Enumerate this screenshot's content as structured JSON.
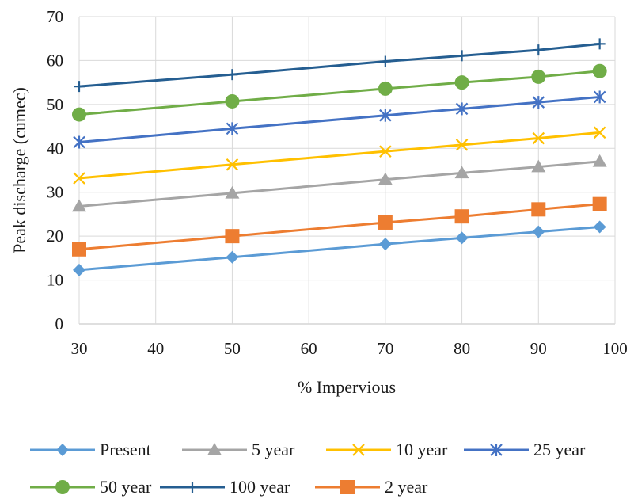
{
  "chart_data": {
    "type": "line",
    "title": "",
    "xlabel": "% Impervious",
    "ylabel": "Peak discharge (cumec)",
    "x": [
      30,
      50,
      70,
      80,
      90,
      98
    ],
    "xlim": [
      30,
      100
    ],
    "ylim": [
      0,
      70
    ],
    "xticks": [
      30,
      40,
      50,
      60,
      70,
      80,
      90,
      100
    ],
    "yticks": [
      0,
      10,
      20,
      30,
      40,
      50,
      60,
      70
    ],
    "grid": true,
    "legend_position": "bottom",
    "series": [
      {
        "name": "Present",
        "color": "#5B9BD5",
        "marker": "diamond",
        "values": [
          12.3,
          15.2,
          18.2,
          19.6,
          21.0,
          22.1
        ]
      },
      {
        "name": "5 year",
        "color": "#A5A5A5",
        "marker": "triangle",
        "values": [
          26.8,
          29.8,
          32.9,
          34.4,
          35.8,
          37.0
        ]
      },
      {
        "name": "10 year",
        "color": "#FFC000",
        "marker": "x",
        "values": [
          33.2,
          36.3,
          39.3,
          40.8,
          42.3,
          43.6
        ]
      },
      {
        "name": "25 year",
        "color": "#4472C4",
        "marker": "asterisk",
        "values": [
          41.4,
          44.5,
          47.5,
          49.0,
          50.5,
          51.7
        ]
      },
      {
        "name": "50 year",
        "color": "#70AD47",
        "marker": "circle",
        "values": [
          47.7,
          50.7,
          53.6,
          55.0,
          56.3,
          57.6
        ]
      },
      {
        "name": "100 year",
        "color": "#255E91",
        "marker": "plus",
        "values": [
          54.1,
          56.8,
          59.8,
          61.1,
          62.4,
          63.8
        ]
      },
      {
        "name": "2 year",
        "color": "#ED7D31",
        "marker": "square",
        "values": [
          17.0,
          20.0,
          23.1,
          24.5,
          26.1,
          27.3
        ]
      }
    ],
    "legend_order": [
      0,
      1,
      2,
      3,
      4,
      5,
      6
    ]
  }
}
